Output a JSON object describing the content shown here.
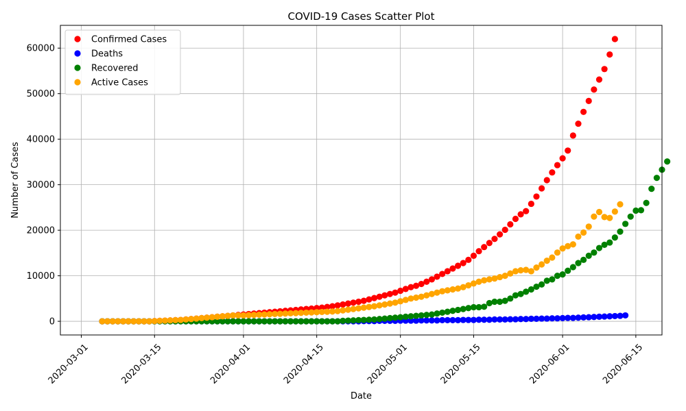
{
  "chart_data": {
    "type": "scatter",
    "title": "COVID-19 Cases Scatter Plot",
    "xlabel": "Date",
    "ylabel": "Number of Cases",
    "x_start": "2020-03-05",
    "x_end": "2020-06-11",
    "xlim": [
      "2020-02-26",
      "2020-06-20"
    ],
    "ylim": [
      -3000,
      65000
    ],
    "x_ticks": [
      "2020-03-01",
      "2020-03-15",
      "2020-04-01",
      "2020-04-15",
      "2020-05-01",
      "2020-05-15",
      "2020-06-01",
      "2020-06-15"
    ],
    "y_ticks": [
      0,
      10000,
      20000,
      30000,
      40000,
      50000,
      60000
    ],
    "grid": true,
    "legend_position": "top-left",
    "series": [
      {
        "name": "Confirmed Cases",
        "color": "#ff0000",
        "values": [
          0,
          0,
          0,
          0,
          0,
          0,
          0,
          0,
          0,
          0,
          50,
          100,
          150,
          200,
          250,
          300,
          400,
          500,
          600,
          700,
          800,
          900,
          1000,
          1100,
          1200,
          1300,
          1400,
          1500,
          1600,
          1700,
          1800,
          1900,
          2000,
          2100,
          2200,
          2300,
          2400,
          2500,
          2600,
          2700,
          2800,
          2900,
          3000,
          3150,
          3300,
          3500,
          3700,
          3900,
          4100,
          4300,
          4500,
          4800,
          5100,
          5400,
          5700,
          6000,
          6300,
          6700,
          7100,
          7500,
          7800,
          8200,
          8700,
          9200,
          9800,
          10400,
          11000,
          11600,
          12200,
          12800,
          13500,
          14400,
          15400,
          16300,
          17200,
          18100,
          19100,
          20100,
          21300,
          22500,
          23500,
          24200,
          25800,
          27400,
          29200,
          31000,
          32700,
          34300,
          35800,
          37500,
          40800,
          43400,
          46000,
          48400,
          50900,
          53100,
          55400,
          58600,
          62000
        ]
      },
      {
        "name": "Deaths",
        "color": "#0000ff",
        "values": [
          0,
          0,
          0,
          0,
          0,
          0,
          0,
          0,
          0,
          0,
          0,
          0,
          0,
          0,
          0,
          0,
          0,
          0,
          0,
          0,
          0,
          0,
          0,
          0,
          0,
          0,
          0,
          0,
          0,
          0,
          0,
          0,
          0,
          0,
          0,
          0,
          0,
          0,
          0,
          0,
          0,
          0,
          0,
          0,
          0,
          0,
          0,
          0,
          0,
          0,
          50,
          50,
          50,
          100,
          100,
          100,
          100,
          150,
          150,
          150,
          150,
          200,
          200,
          200,
          200,
          250,
          250,
          250,
          250,
          300,
          300,
          300,
          350,
          350,
          350,
          400,
          400,
          400,
          450,
          450,
          500,
          500,
          550,
          550,
          600,
          600,
          650,
          650,
          700,
          750,
          750,
          800,
          850,
          900,
          950,
          1000,
          1050,
          1100,
          1150,
          1200,
          1300
        ]
      },
      {
        "name": "Recovered",
        "color": "#008000",
        "values": [
          0,
          0,
          0,
          0,
          0,
          0,
          0,
          0,
          0,
          0,
          0,
          0,
          0,
          0,
          0,
          0,
          0,
          0,
          0,
          0,
          0,
          0,
          0,
          0,
          0,
          0,
          0,
          0,
          0,
          0,
          0,
          0,
          0,
          0,
          0,
          0,
          0,
          0,
          0,
          0,
          0,
          0,
          0,
          0,
          0,
          0,
          100,
          150,
          200,
          250,
          300,
          350,
          400,
          500,
          600,
          700,
          800,
          900,
          1000,
          1100,
          1200,
          1300,
          1400,
          1500,
          1700,
          1900,
          2100,
          2300,
          2500,
          2700,
          2900,
          3100,
          3100,
          3200,
          4000,
          4300,
          4300,
          4500,
          5000,
          5700,
          6000,
          6500,
          7000,
          7600,
          8100,
          8900,
          9200,
          10000,
          10300,
          11100,
          11900,
          12800,
          13500,
          14400,
          15100,
          16100,
          16800,
          17300,
          18400,
          19700,
          21400,
          23000,
          24300,
          24400,
          26000,
          29100,
          31500,
          33300,
          35100
        ]
      },
      {
        "name": "Active Cases",
        "color": "#ffa500",
        "values": [
          0,
          0,
          0,
          0,
          0,
          0,
          0,
          0,
          0,
          0,
          50,
          100,
          150,
          200,
          250,
          300,
          400,
          500,
          600,
          700,
          800,
          900,
          1000,
          1100,
          1200,
          1300,
          1300,
          1300,
          1350,
          1400,
          1450,
          1500,
          1550,
          1600,
          1650,
          1700,
          1750,
          1800,
          1850,
          1900,
          1950,
          2000,
          2050,
          2100,
          2150,
          2250,
          2400,
          2550,
          2700,
          2850,
          3000,
          3150,
          3300,
          3500,
          3700,
          3900,
          4100,
          4400,
          4700,
          5000,
          5200,
          5400,
          5700,
          6000,
          6300,
          6600,
          6800,
          7000,
          7200,
          7500,
          7900,
          8300,
          8700,
          9000,
          9200,
          9400,
          9700,
          10000,
          10500,
          11000,
          11200,
          11300,
          11000,
          11800,
          12500,
          13300,
          14000,
          15100,
          16000,
          16500,
          16900,
          18600,
          19500,
          20800,
          23000,
          24000,
          22900,
          22700,
          24100,
          25700
        ]
      }
    ]
  }
}
